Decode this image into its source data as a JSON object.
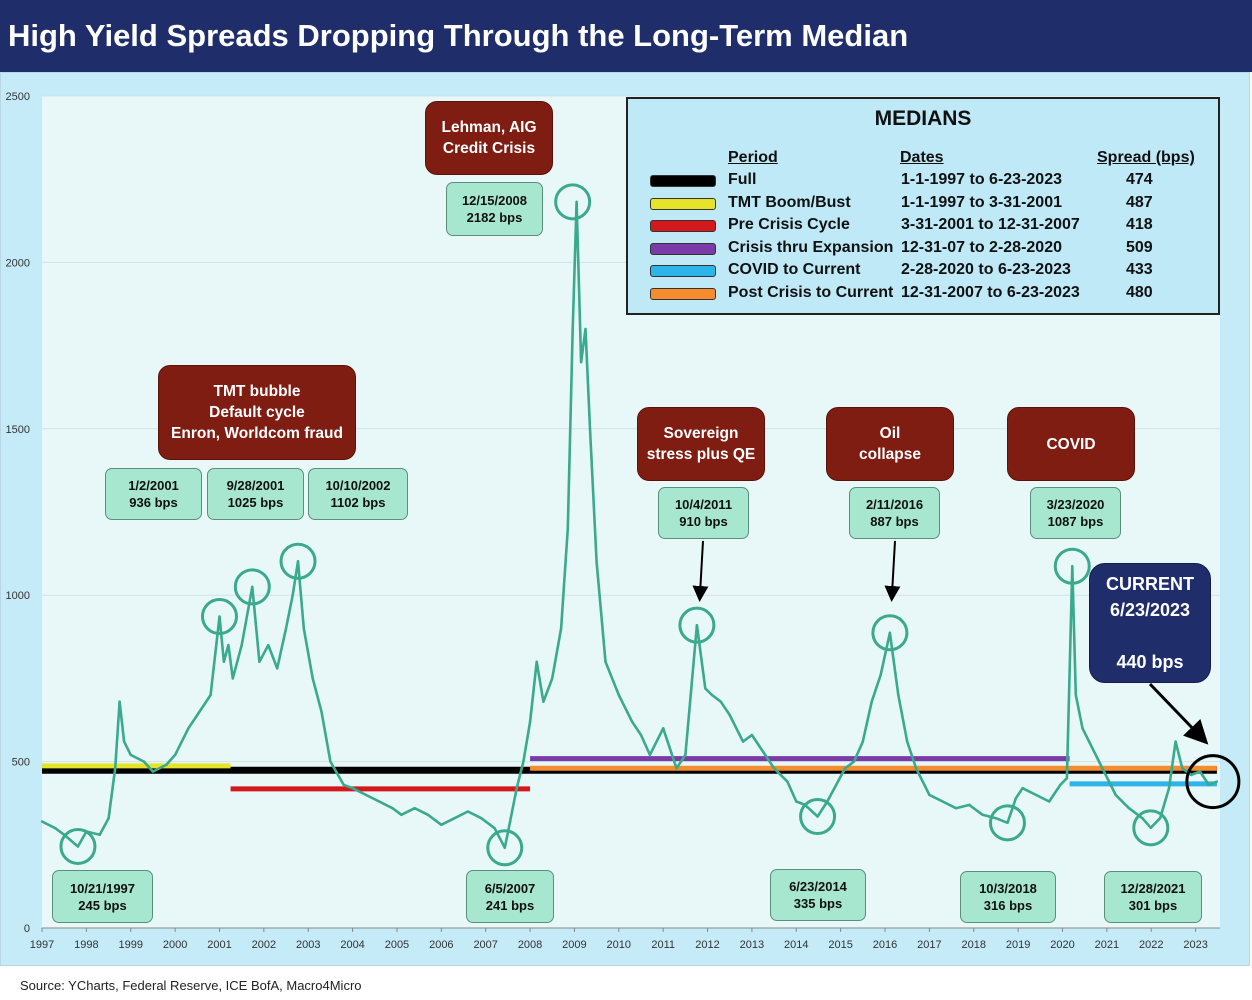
{
  "title": "High Yield Spreads Dropping Through the Long-Term Median",
  "source": "Source: YCharts, Federal Reserve, ICE BofA, Macro4Micro",
  "colors": {
    "line": "#3aa98e",
    "plot_bg": "#e8f8f8",
    "outer_bg": "#c4ebf7",
    "title_bg": "#1f2d6b"
  },
  "chart_data": {
    "type": "line",
    "title": "High Yield Spreads Dropping Through the Long-Term Median",
    "xlabel": "",
    "ylabel": "",
    "xlim": [
      1997.0,
      2023.55
    ],
    "ylim": [
      0,
      2500
    ],
    "y_ticks": [
      "0",
      "500",
      "1000",
      "1500",
      "2000",
      "2500"
    ],
    "x_ticks": [
      "1997",
      "1998",
      "1999",
      "2000",
      "2001",
      "2002",
      "2003",
      "2004",
      "2005",
      "2006",
      "2007",
      "2008",
      "2009",
      "2010",
      "2011",
      "2012",
      "2013",
      "2014",
      "2015",
      "2016",
      "2017",
      "2018",
      "2019",
      "2020",
      "2021",
      "2022",
      "2023"
    ],
    "series": [
      {
        "name": "High Yield Spread (bps)",
        "x": [
          1997.0,
          1997.3,
          1997.5,
          1997.81,
          1998.0,
          1998.3,
          1998.5,
          1998.65,
          1998.75,
          1998.85,
          1999.0,
          1999.3,
          1999.5,
          1999.8,
          2000.0,
          2000.3,
          2000.5,
          2000.8,
          2001.0,
          2001.1,
          2001.2,
          2001.3,
          2001.5,
          2001.74,
          2001.9,
          2002.1,
          2002.3,
          2002.5,
          2002.65,
          2002.77,
          2002.9,
          2003.1,
          2003.3,
          2003.5,
          2003.8,
          2004.0,
          2004.3,
          2004.6,
          2004.9,
          2005.1,
          2005.4,
          2005.7,
          2006.0,
          2006.3,
          2006.6,
          2006.9,
          2007.2,
          2007.43,
          2007.55,
          2007.7,
          2007.85,
          2008.0,
          2008.15,
          2008.3,
          2008.5,
          2008.7,
          2008.85,
          2008.96,
          2009.05,
          2009.15,
          2009.25,
          2009.35,
          2009.5,
          2009.7,
          2010.0,
          2010.3,
          2010.5,
          2010.7,
          2011.0,
          2011.3,
          2011.5,
          2011.76,
          2011.95,
          2012.1,
          2012.3,
          2012.5,
          2012.8,
          2013.0,
          2013.3,
          2013.5,
          2013.8,
          2014.0,
          2014.2,
          2014.48,
          2014.7,
          2014.9,
          2015.1,
          2015.3,
          2015.5,
          2015.7,
          2015.9,
          2016.11,
          2016.3,
          2016.5,
          2016.7,
          2017.0,
          2017.3,
          2017.6,
          2017.9,
          2018.2,
          2018.5,
          2018.76,
          2018.95,
          2019.1,
          2019.4,
          2019.7,
          2019.95,
          2020.1,
          2020.22,
          2020.3,
          2020.45,
          2020.6,
          2020.9,
          2021.2,
          2021.5,
          2021.8,
          2021.99,
          2022.2,
          2022.4,
          2022.55,
          2022.7,
          2022.9,
          2023.1,
          2023.3,
          2023.48
        ],
        "values": [
          320,
          300,
          280,
          245,
          290,
          280,
          330,
          480,
          680,
          560,
          520,
          500,
          470,
          490,
          520,
          600,
          640,
          700,
          936,
          800,
          850,
          750,
          850,
          1025,
          800,
          850,
          780,
          900,
          1000,
          1102,
          900,
          750,
          650,
          500,
          430,
          420,
          400,
          380,
          360,
          340,
          360,
          340,
          310,
          330,
          350,
          330,
          300,
          241,
          320,
          420,
          500,
          620,
          800,
          680,
          750,
          900,
          1200,
          1800,
          2182,
          1700,
          1800,
          1500,
          1100,
          800,
          700,
          620,
          580,
          520,
          600,
          480,
          520,
          910,
          720,
          700,
          680,
          640,
          560,
          580,
          520,
          480,
          440,
          380,
          370,
          335,
          380,
          430,
          480,
          500,
          560,
          680,
          760,
          887,
          700,
          560,
          480,
          400,
          380,
          360,
          370,
          340,
          330,
          316,
          390,
          420,
          400,
          380,
          430,
          450,
          1087,
          700,
          600,
          560,
          480,
          400,
          360,
          330,
          301,
          330,
          420,
          560,
          480,
          460,
          470,
          430,
          440
        ]
      }
    ],
    "medians": [
      {
        "period": "Full",
        "dates": "1-1-1997 to 6-23-2023",
        "spread": "474",
        "value": 474,
        "from": 1997.0,
        "to": 2023.48,
        "color": "#000000"
      },
      {
        "period": "TMT Boom/Bust",
        "dates": "1-1-1997 to 3-31-2001",
        "spread": "487",
        "value": 487,
        "from": 1997.0,
        "to": 2001.25,
        "color": "#e6e32b"
      },
      {
        "period": "Pre Crisis Cycle",
        "dates": "3-31-2001 to 12-31-2007",
        "spread": "418",
        "value": 418,
        "from": 2001.25,
        "to": 2008.0,
        "color": "#d3191c"
      },
      {
        "period": "Crisis thru Expansion",
        "dates": "12-31-07 to 2-28-2020",
        "spread": "509",
        "value": 509,
        "from": 2008.0,
        "to": 2020.16,
        "color": "#7a3aa8"
      },
      {
        "period": "COVID to Current",
        "dates": "2-28-2020 to 6-23-2023",
        "spread": "433",
        "value": 433,
        "from": 2020.16,
        "to": 2023.48,
        "color": "#2db4e8"
      },
      {
        "period": "Post Crisis to Current",
        "dates": "12-31-2007 to 6-23-2023",
        "spread": "480",
        "value": 480,
        "from": 2008.0,
        "to": 2023.48,
        "color": "#f58c2d"
      }
    ],
    "circles": [
      {
        "x": 1997.81,
        "y": 245
      },
      {
        "x": 2001.0,
        "y": 936
      },
      {
        "x": 2001.74,
        "y": 1025
      },
      {
        "x": 2002.77,
        "y": 1102
      },
      {
        "x": 2007.43,
        "y": 241
      },
      {
        "x": 2008.96,
        "y": 2182
      },
      {
        "x": 2011.76,
        "y": 910
      },
      {
        "x": 2014.48,
        "y": 335
      },
      {
        "x": 2016.11,
        "y": 887
      },
      {
        "x": 2018.76,
        "y": 316
      },
      {
        "x": 2020.22,
        "y": 1087
      },
      {
        "x": 2021.99,
        "y": 301
      }
    ],
    "current_marker": {
      "x": 2023.48,
      "y": 440
    }
  },
  "legend": {
    "title": "MEDIANS",
    "headers": {
      "period": "Period",
      "dates": "Dates",
      "spread": "Spread (bps)"
    }
  },
  "annotations": {
    "tmt": "TMT bubble\nDefault cycle\nEnron, Worldcom fraud",
    "lehman": "Lehman, AIG\nCredit Crisis",
    "sovereign": "Sovereign\nstress plus QE",
    "oil": "Oil\ncollapse",
    "covid": "COVID",
    "current": "CURRENT\n6/23/2023\n\n440 bps",
    "d2001a": "1/2/2001\n936 bps",
    "d2001b": "9/28/2001\n1025 bps",
    "d2002": "10/10/2002\n1102 bps",
    "d2008": "12/15/2008\n2182 bps",
    "d2011": "10/4/2011\n910 bps",
    "d2016": "2/11/2016\n887 bps",
    "d2020": "3/23/2020\n1087 bps",
    "d1997": "10/21/1997\n245 bps",
    "d2007": "6/5/2007\n241 bps",
    "d2014": "6/23/2014\n335 bps",
    "d2018": "10/3/2018\n316 bps",
    "d2021": "12/28/2021\n301 bps"
  }
}
